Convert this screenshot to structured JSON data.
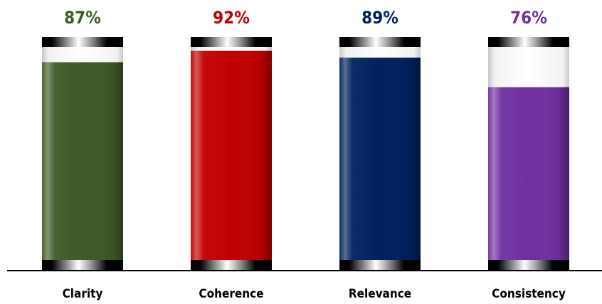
{
  "chart_data": {
    "type": "bar",
    "categories": [
      "Clarity",
      "Coherence",
      "Relevance",
      "Consistency"
    ],
    "values": [
      87,
      92,
      89,
      76
    ],
    "labels": [
      "87%",
      "92%",
      "89%",
      "76%"
    ],
    "ylim": [
      0,
      100
    ],
    "colors": [
      "#3e5a26",
      "#c00000",
      "#002060",
      "#7030a0"
    ],
    "grid": false,
    "legend": "none"
  }
}
